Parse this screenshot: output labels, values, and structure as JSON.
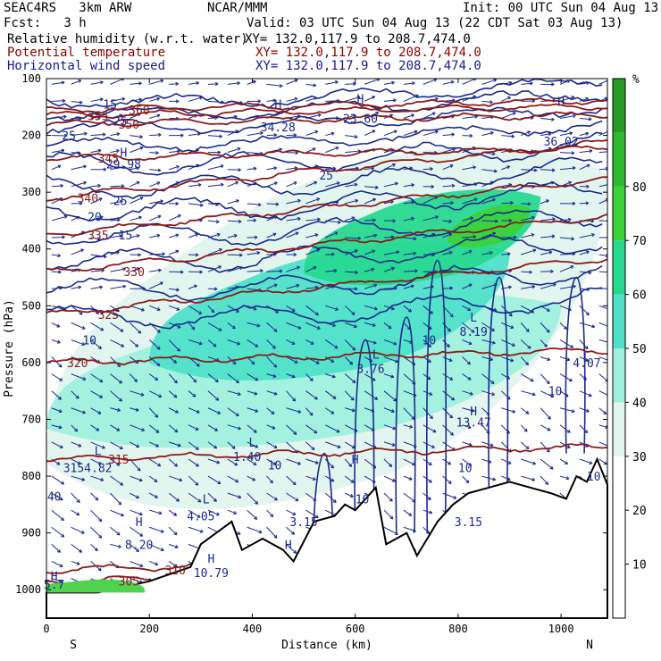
{
  "header": {
    "model": "SEAC4RS   3km ARW",
    "org": "NCAR/MMM",
    "init": "Init: 00 UTC Sun 04 Aug 13",
    "fcst": "Fcst:   3 h",
    "valid": "Valid: 03 UTC Sun 04 Aug 13 (22 CDT Sat 03 Aug 13)",
    "fields": [
      {
        "name": "Relative humidity (w.r.t. water)",
        "xy": "XY= 132.0,117.9 to 208.7,474.0",
        "color": "#000000"
      },
      {
        "name": "Potential temperature",
        "xy": "XY= 132.0,117.9 to 208.7,474.0",
        "color": "#8b0000"
      },
      {
        "name": "Horizontal wind speed",
        "xy": "XY= 132.0,117.9 to 208.7,474.0",
        "color": "#1a1a8c"
      }
    ]
  },
  "colors": {
    "theta": "#8b1a1a",
    "wind": "#1a2a8c",
    "terrain": "#000000",
    "rh_scale": [
      "#ffffff",
      "#ffffff",
      "#ffffff",
      "#e0f5ee",
      "#9ff0dc",
      "#50e0c8",
      "#28d890",
      "#3cd23c",
      "#30b830",
      "#289a28"
    ]
  },
  "chart_data": {
    "type": "heatmap",
    "xlabel": "Distance (km)",
    "ylabel": "Pressure (hPa)",
    "x_ticks": [
      0,
      200,
      400,
      600,
      800,
      1000
    ],
    "y_ticks": [
      100,
      200,
      300,
      400,
      500,
      600,
      700,
      800,
      900,
      1000
    ],
    "xlim": [
      0,
      1090
    ],
    "ylim": [
      1050,
      100
    ],
    "x_end_labels": {
      "left": "S",
      "right": "N"
    },
    "colorbar": {
      "unit": "%",
      "ticks": [
        10,
        20,
        30,
        40,
        50,
        60,
        70,
        80
      ],
      "range": [
        0,
        100
      ]
    },
    "rh_regions": [
      {
        "rh": 35,
        "x": [
          0,
          1090
        ],
        "p": [
          880,
          200
        ]
      },
      {
        "rh": 45,
        "x": [
          0,
          1000
        ],
        "p": [
          760,
          470
        ]
      },
      {
        "rh": 55,
        "x": [
          200,
          900
        ],
        "p": [
          640,
          380
        ]
      },
      {
        "rh": 65,
        "x": [
          500,
          960
        ],
        "p": [
          470,
          290
        ]
      },
      {
        "rh": 75,
        "x": [
          780,
          940
        ],
        "p": [
          400,
          320
        ]
      }
    ],
    "theta_isolines": [
      {
        "value": 305,
        "label_pos": [
          140,
          985
        ]
      },
      {
        "value": 310,
        "label_pos": [
          230,
          965
        ]
      },
      {
        "value": 315,
        "label_pos": [
          120,
          770
        ]
      },
      {
        "value": 320,
        "label_pos": [
          40,
          600
        ]
      },
      {
        "value": 325,
        "label_pos": [
          100,
          515
        ]
      },
      {
        "value": 330,
        "label_pos": [
          150,
          440
        ]
      },
      {
        "value": 335,
        "label_pos": [
          80,
          375
        ]
      },
      {
        "value": 340,
        "label_pos": [
          60,
          310
        ]
      },
      {
        "value": 345,
        "label_pos": [
          100,
          240
        ]
      },
      {
        "value": 350,
        "label_pos": [
          140,
          180
        ]
      },
      {
        "value": 355,
        "label_pos": [
          80,
          165
        ]
      },
      {
        "value": 360,
        "label_pos": [
          160,
          155
        ]
      }
    ],
    "wind_contour_labels": [
      {
        "text": "10",
        "x": 70,
        "p": 560
      },
      {
        "text": "15",
        "x": 140,
        "p": 375
      },
      {
        "text": "20",
        "x": 80,
        "p": 343
      },
      {
        "text": "25",
        "x": 130,
        "p": 315
      },
      {
        "text": "25",
        "x": 30,
        "p": 200
      },
      {
        "text": "25",
        "x": 130,
        "p": 175
      },
      {
        "text": "25",
        "x": 530,
        "p": 270
      },
      {
        "text": "15",
        "x": 110,
        "p": 145
      },
      {
        "text": "10",
        "x": 430,
        "p": 780
      },
      {
        "text": "10",
        "x": 600,
        "p": 840
      },
      {
        "text": "10",
        "x": 800,
        "p": 785
      },
      {
        "text": "10",
        "x": 1050,
        "p": 800
      },
      {
        "text": "10",
        "x": 975,
        "p": 650
      },
      {
        "text": "10",
        "x": 730,
        "p": 560
      }
    ],
    "lh_labels": [
      {
        "text": "L",
        "x": 830,
        "p": 520
      },
      {
        "text": "8.19",
        "x": 830,
        "p": 545
      },
      {
        "text": "L",
        "x": 640,
        "p": 585
      },
      {
        "text": "3.76",
        "x": 630,
        "p": 610
      },
      {
        "text": "H",
        "x": 830,
        "p": 685
      },
      {
        "text": "13.47",
        "x": 830,
        "p": 705
      },
      {
        "text": "L",
        "x": 1050,
        "p": 590
      },
      {
        "text": "4.07",
        "x": 1050,
        "p": 600
      },
      {
        "text": "L",
        "x": 400,
        "p": 740
      },
      {
        "text": "1.40",
        "x": 390,
        "p": 765
      },
      {
        "text": "L",
        "x": 100,
        "p": 755
      },
      {
        "text": "3154.82",
        "x": 80,
        "p": 785
      },
      {
        "text": "40",
        "x": 15,
        "p": 835
      },
      {
        "text": "L",
        "x": 310,
        "p": 840
      },
      {
        "text": "4.05",
        "x": 300,
        "p": 870
      },
      {
        "text": "H",
        "x": 180,
        "p": 880
      },
      {
        "text": "8.20",
        "x": 180,
        "p": 920
      },
      {
        "text": "H",
        "x": 320,
        "p": 945
      },
      {
        "text": "10.79",
        "x": 320,
        "p": 970
      },
      {
        "text": "H",
        "x": 15,
        "p": 975
      },
      {
        "text": "5.7",
        "x": 15,
        "p": 990
      },
      {
        "text": "H",
        "x": 600,
        "p": 770
      },
      {
        "text": "H",
        "x": 470,
        "p": 920
      },
      {
        "text": "H",
        "x": 1000,
        "p": 140
      },
      {
        "text": "36.02",
        "x": 1000,
        "p": 210
      },
      {
        "text": "H",
        "x": 450,
        "p": 145
      },
      {
        "text": "34.28",
        "x": 450,
        "p": 185
      },
      {
        "text": "H",
        "x": 150,
        "p": 230
      },
      {
        "text": "29.98",
        "x": 150,
        "p": 250
      },
      {
        "text": "H",
        "x": 610,
        "p": 135
      },
      {
        "text": "23.60",
        "x": 610,
        "p": 170
      },
      {
        "text": "3.15",
        "x": 500,
        "p": 880
      },
      {
        "text": "3.15",
        "x": 820,
        "p": 880
      }
    ]
  }
}
